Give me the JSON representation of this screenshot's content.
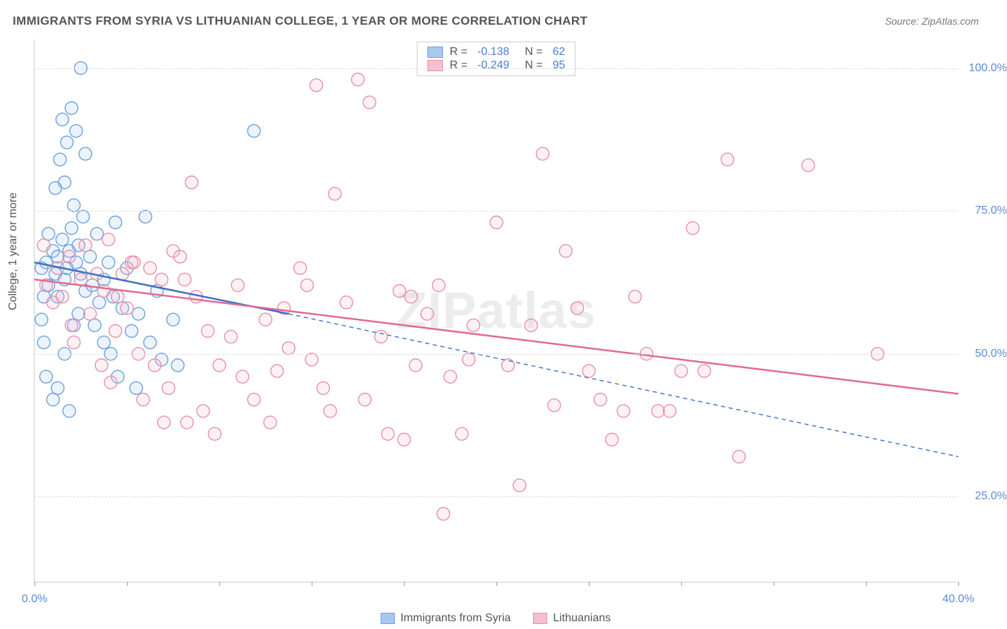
{
  "title": "IMMIGRANTS FROM SYRIA VS LITHUANIAN COLLEGE, 1 YEAR OR MORE CORRELATION CHART",
  "source": "Source: ZipAtlas.com",
  "ylabel": "College, 1 year or more",
  "watermark": "ZIPatlas",
  "chart": {
    "type": "scatter",
    "xlim": [
      0,
      40
    ],
    "ylim": [
      10,
      105
    ],
    "xticks": [
      0,
      4,
      8,
      12,
      16,
      20,
      24,
      28,
      32,
      36,
      40
    ],
    "xtick_labels": {
      "0": "0.0%",
      "40": "40.0%"
    },
    "yticks": [
      25,
      50,
      75,
      100
    ],
    "ytick_labels": {
      "25": "25.0%",
      "50": "50.0%",
      "75": "75.0%",
      "100": "100.0%"
    },
    "background_color": "#ffffff",
    "grid_color": "#dddddd",
    "axis_color": "#cccccc",
    "marker_radius": 9,
    "marker_stroke_width": 1.4,
    "marker_fill_opacity": 0.22,
    "series": [
      {
        "name": "Immigrants from Syria",
        "color_stroke": "#6aa0e0",
        "color_fill": "#a9c8ee",
        "r_label": "R =",
        "r_value": "-0.138",
        "n_label": "N =",
        "n_value": "62",
        "regression": {
          "x1": 0,
          "y1": 66,
          "x2": 11,
          "y2": 57,
          "dash_x2": 40,
          "dash_y2": 32,
          "stroke": "#3d6fc4",
          "width": 2.5
        },
        "points": [
          [
            0.3,
            65
          ],
          [
            0.5,
            66
          ],
          [
            0.6,
            62
          ],
          [
            0.8,
            68
          ],
          [
            0.6,
            71
          ],
          [
            0.4,
            60
          ],
          [
            0.9,
            64
          ],
          [
            1.0,
            67
          ],
          [
            1.2,
            70
          ],
          [
            1.3,
            63
          ],
          [
            1.0,
            60
          ],
          [
            1.4,
            65
          ],
          [
            1.5,
            68
          ],
          [
            1.6,
            72
          ],
          [
            1.8,
            66
          ],
          [
            1.9,
            69
          ],
          [
            2.0,
            64
          ],
          [
            2.2,
            61
          ],
          [
            2.1,
            74
          ],
          [
            1.7,
            76
          ],
          [
            2.4,
            67
          ],
          [
            2.5,
            62
          ],
          [
            2.7,
            71
          ],
          [
            2.8,
            59
          ],
          [
            3.0,
            63
          ],
          [
            3.2,
            66
          ],
          [
            3.4,
            60
          ],
          [
            3.5,
            73
          ],
          [
            3.8,
            58
          ],
          [
            4.0,
            65
          ],
          [
            4.2,
            54
          ],
          [
            4.5,
            57
          ],
          [
            4.8,
            74
          ],
          [
            5.0,
            52
          ],
          [
            5.3,
            61
          ],
          [
            5.5,
            49
          ],
          [
            6.0,
            56
          ],
          [
            6.2,
            48
          ],
          [
            1.3,
            80
          ],
          [
            1.1,
            84
          ],
          [
            1.4,
            87
          ],
          [
            1.2,
            91
          ],
          [
            1.6,
            93
          ],
          [
            2.0,
            100
          ],
          [
            1.8,
            89
          ],
          [
            2.2,
            85
          ],
          [
            0.9,
            79
          ],
          [
            0.5,
            46
          ],
          [
            0.8,
            42
          ],
          [
            1.0,
            44
          ],
          [
            1.3,
            50
          ],
          [
            1.5,
            40
          ],
          [
            1.7,
            55
          ],
          [
            3.6,
            46
          ],
          [
            4.4,
            44
          ],
          [
            0.3,
            56
          ],
          [
            0.4,
            52
          ],
          [
            2.6,
            55
          ],
          [
            3.0,
            52
          ],
          [
            3.3,
            50
          ],
          [
            9.5,
            89
          ],
          [
            1.9,
            57
          ]
        ]
      },
      {
        "name": "Lithuanians",
        "color_stroke": "#e890a8",
        "color_fill": "#f5c0ce",
        "r_label": "R =",
        "r_value": "-0.249",
        "n_label": "N =",
        "n_value": "95",
        "regression": {
          "x1": 0,
          "y1": 63,
          "x2": 40,
          "y2": 43,
          "stroke": "#e36990",
          "width": 2.5
        },
        "points": [
          [
            0.5,
            62
          ],
          [
            0.8,
            59
          ],
          [
            1.0,
            65
          ],
          [
            1.2,
            60
          ],
          [
            1.5,
            67
          ],
          [
            1.6,
            55
          ],
          [
            2.0,
            63
          ],
          [
            2.2,
            69
          ],
          [
            2.4,
            57
          ],
          [
            2.7,
            64
          ],
          [
            3.0,
            61
          ],
          [
            3.2,
            70
          ],
          [
            3.5,
            54
          ],
          [
            3.8,
            64
          ],
          [
            4.0,
            58
          ],
          [
            4.2,
            66
          ],
          [
            4.5,
            50
          ],
          [
            5.0,
            65
          ],
          [
            5.2,
            48
          ],
          [
            5.5,
            63
          ],
          [
            5.8,
            44
          ],
          [
            6.0,
            68
          ],
          [
            6.3,
            67
          ],
          [
            6.5,
            63
          ],
          [
            7.0,
            60
          ],
          [
            7.3,
            40
          ],
          [
            8.0,
            48
          ],
          [
            8.5,
            53
          ],
          [
            9.0,
            46
          ],
          [
            9.5,
            42
          ],
          [
            10.0,
            56
          ],
          [
            10.2,
            38
          ],
          [
            10.5,
            47
          ],
          [
            11.0,
            51
          ],
          [
            11.5,
            65
          ],
          [
            12.0,
            49
          ],
          [
            12.2,
            97
          ],
          [
            12.5,
            44
          ],
          [
            13.0,
            78
          ],
          [
            13.5,
            59
          ],
          [
            14.0,
            98
          ],
          [
            14.5,
            94
          ],
          [
            15.0,
            53
          ],
          [
            15.3,
            36
          ],
          [
            15.8,
            61
          ],
          [
            16.0,
            35
          ],
          [
            16.5,
            48
          ],
          [
            17.0,
            57
          ],
          [
            17.5,
            62
          ],
          [
            17.7,
            22
          ],
          [
            18.0,
            46
          ],
          [
            18.5,
            36
          ],
          [
            19.0,
            55
          ],
          [
            20.0,
            73
          ],
          [
            20.5,
            48
          ],
          [
            21.0,
            27
          ],
          [
            22.0,
            85
          ],
          [
            22.5,
            41
          ],
          [
            23.0,
            68
          ],
          [
            23.5,
            58
          ],
          [
            24.0,
            47
          ],
          [
            25.0,
            35
          ],
          [
            25.5,
            40
          ],
          [
            26.0,
            60
          ],
          [
            26.5,
            50
          ],
          [
            27.0,
            40
          ],
          [
            28.0,
            47
          ],
          [
            28.5,
            72
          ],
          [
            30.0,
            84
          ],
          [
            30.5,
            32
          ],
          [
            33.5,
            83
          ],
          [
            36.5,
            50
          ],
          [
            6.8,
            80
          ],
          [
            4.3,
            66
          ],
          [
            3.6,
            60
          ],
          [
            7.5,
            54
          ],
          [
            11.8,
            62
          ],
          [
            0.4,
            69
          ],
          [
            1.7,
            52
          ],
          [
            2.9,
            48
          ],
          [
            3.3,
            45
          ],
          [
            4.7,
            42
          ],
          [
            5.6,
            38
          ],
          [
            6.6,
            38
          ],
          [
            7.8,
            36
          ],
          [
            8.8,
            62
          ],
          [
            10.8,
            58
          ],
          [
            12.8,
            40
          ],
          [
            14.3,
            42
          ],
          [
            16.3,
            60
          ],
          [
            18.8,
            49
          ],
          [
            21.5,
            55
          ],
          [
            24.5,
            42
          ],
          [
            27.5,
            40
          ],
          [
            29.0,
            47
          ]
        ]
      }
    ]
  },
  "legend_bottom": {
    "items": [
      {
        "label": "Immigrants from Syria",
        "fill": "#a9c8ee",
        "stroke": "#6aa0e0"
      },
      {
        "label": "Lithuanians",
        "fill": "#f5c0ce",
        "stroke": "#e890a8"
      }
    ]
  },
  "colors": {
    "tick_label": "#5b8bd4",
    "title": "#555555"
  }
}
